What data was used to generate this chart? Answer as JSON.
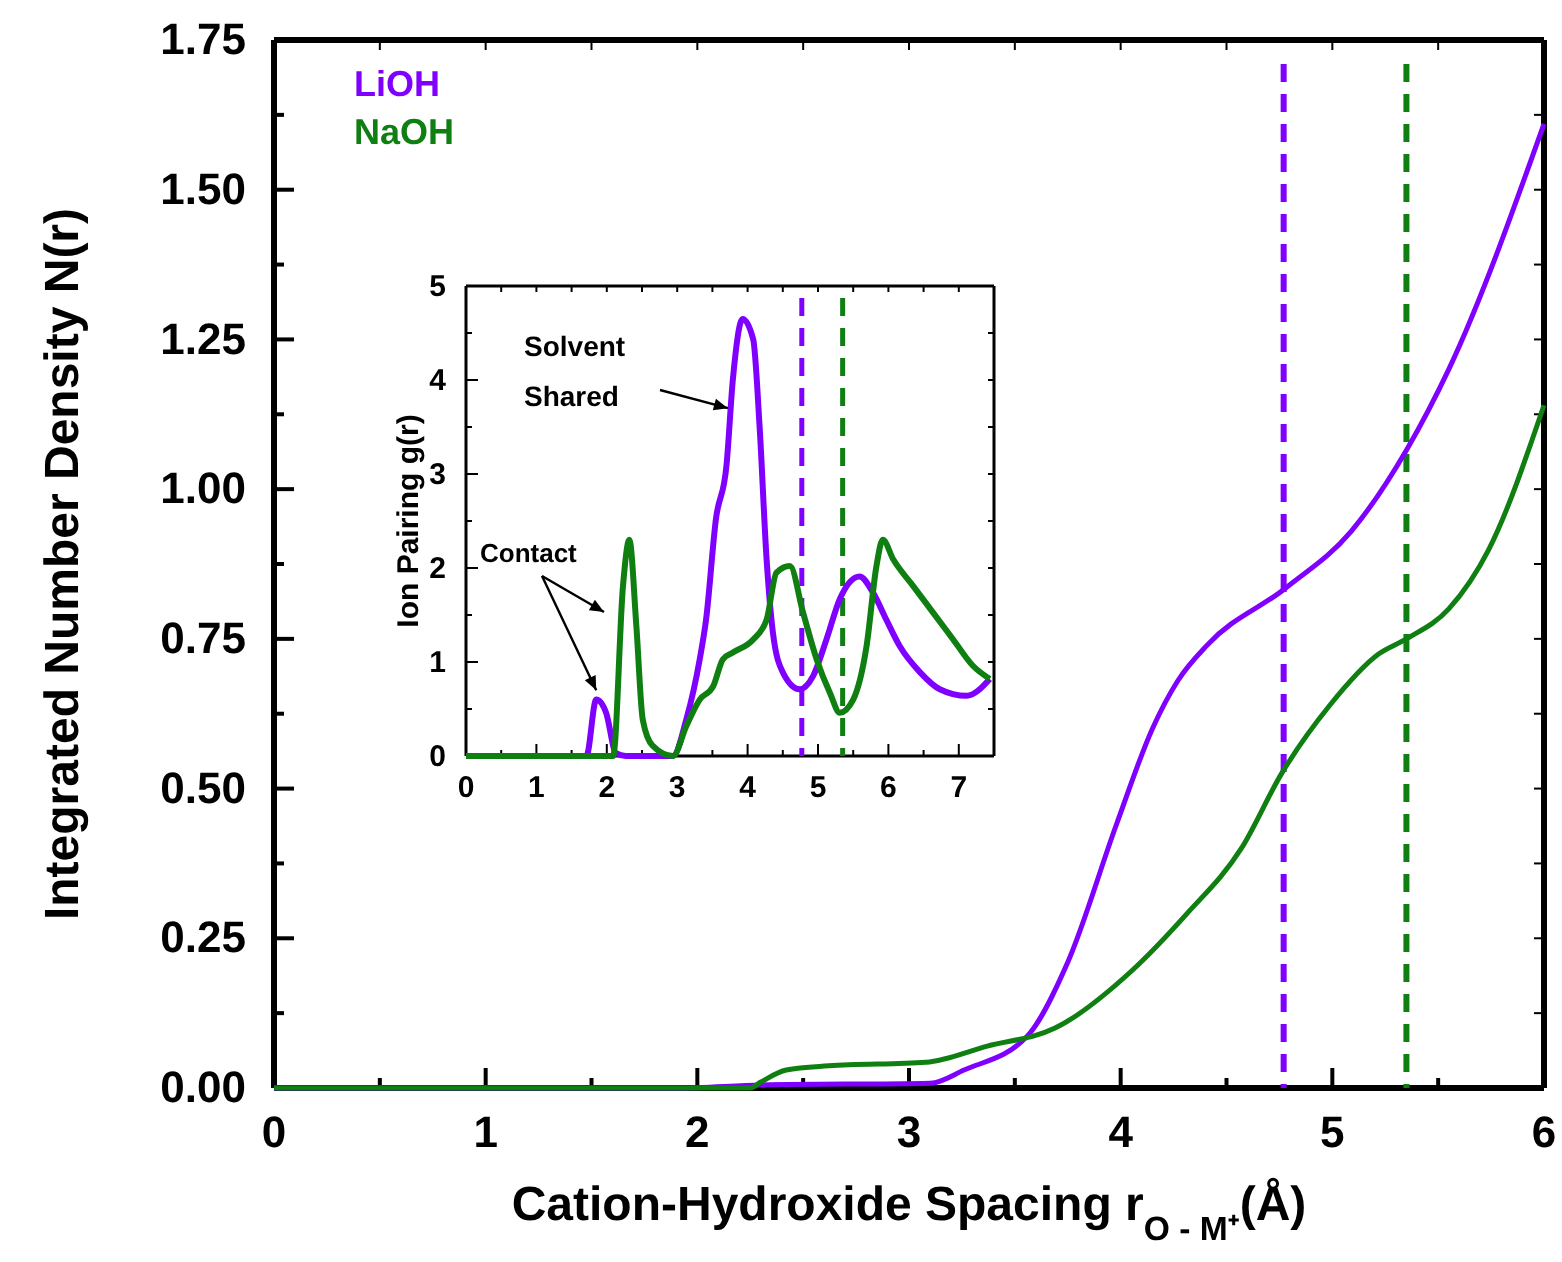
{
  "chart_data": [
    {
      "type": "line",
      "xlabel": "Cation-Hydroxide Spacing r$_{O - M⁺}$(Å)",
      "ylabel": "Integrated Number Density N(r)",
      "xlim": [
        0,
        6
      ],
      "ylim": [
        0,
        1.75
      ],
      "xticks": [
        0,
        {
          "value": 0.5,
          "label": null
        },
        1,
        {
          "value": 1.5,
          "label": null
        },
        2,
        {
          "value": 2.5,
          "label": null
        },
        3,
        {
          "value": 3.5,
          "label": null
        },
        4,
        {
          "value": 4.5,
          "label": null
        },
        5,
        {
          "value": 5.5,
          "label": null
        },
        6
      ],
      "yticks": [
        {
          "value": 0,
          "label": "0.00"
        },
        {
          "value": 0.125,
          "label": null
        },
        {
          "value": 0.25,
          "label": "0.25"
        },
        {
          "value": 0.375,
          "label": null
        },
        {
          "value": 0.5,
          "label": "0.50"
        },
        {
          "value": 0.625,
          "label": null
        },
        {
          "value": 0.75,
          "label": "0.75"
        },
        {
          "value": 0.875,
          "label": null
        },
        {
          "value": 1,
          "label": "1.00"
        },
        {
          "value": 1.125,
          "label": null
        },
        {
          "value": 1.25,
          "label": "1.25"
        },
        {
          "value": 1.375,
          "label": null
        },
        {
          "value": 1.5,
          "label": "1.50"
        },
        {
          "value": 1.625,
          "label": null
        },
        {
          "value": 1.75,
          "label": "1.75"
        }
      ],
      "legend": "top left",
      "grid": false,
      "line_style": "solid",
      "marker": "none",
      "series": [
        {
          "name": "LiOH",
          "color": "#8000ff",
          "x": [
            0,
            1.9,
            2.3,
            3.1,
            3.26,
            3.56,
            3.75,
            3.98,
            4.15,
            4.27,
            4.41,
            4.78,
            5.09,
            5.35,
            5.55,
            6
          ],
          "values": [
            0,
            0,
            0.005,
            0.008,
            0.03,
            0.087,
            0.21,
            0.44,
            0.6,
            0.68,
            0.74,
            0.835,
            0.93,
            1.065,
            1.2,
            1.61
          ]
        },
        {
          "name": "NaOH",
          "color": "#0f7f12",
          "x": [
            0,
            2.25,
            2.3,
            2.42,
            2.62,
            3.08,
            3.37,
            3.69,
            4.05,
            4.31,
            4.57,
            4.76,
            4.99,
            5.22,
            5.35,
            5.55,
            5.74,
            6
          ],
          "values": [
            0,
            0,
            0.01,
            0.03,
            0.037,
            0.043,
            0.07,
            0.1,
            0.195,
            0.29,
            0.4,
            0.525,
            0.64,
            0.725,
            0.75,
            0.8,
            0.9,
            1.14
          ]
        }
      ],
      "ref_lines": [
        {
          "axis": "x",
          "value": 4.77,
          "color": "#8000ff",
          "line_style": "dashed"
        },
        {
          "axis": "x",
          "value": 5.35,
          "color": "#0f7f12",
          "line_style": "dashed"
        }
      ]
    },
    {
      "type": "line",
      "ylabel": "Ion Pairing g(r)",
      "xlim": [
        0,
        7.5
      ],
      "ylim": [
        0,
        5
      ],
      "xticks": [
        0,
        {
          "value": 0.5,
          "label": null
        },
        1,
        {
          "value": 1.5,
          "label": null
        },
        2,
        {
          "value": 2.5,
          "label": null
        },
        3,
        {
          "value": 3.5,
          "label": null
        },
        4,
        {
          "value": 4.5,
          "label": null
        },
        5,
        {
          "value": 5.5,
          "label": null
        },
        6,
        {
          "value": 6.5,
          "label": null
        },
        7,
        {
          "value": 7.5,
          "label": null
        }
      ],
      "yticks": [
        0,
        {
          "value": 0.5,
          "label": null
        },
        1,
        {
          "value": 1.5,
          "label": null
        },
        2,
        {
          "value": 2.5,
          "label": null
        },
        3,
        {
          "value": 3.5,
          "label": null
        },
        4,
        {
          "value": 4.5,
          "label": null
        },
        5
      ],
      "grid": false,
      "line_style": "solid",
      "marker": "none",
      "annotations": [
        {
          "text": "Contact",
          "x": 1.85,
          "y": 0.7
        },
        {
          "text": "Solvent Shared",
          "x": 3.72,
          "y": 3.7
        }
      ],
      "series": [
        {
          "color": "#8000ff",
          "x": [
            0,
            1.71,
            1.85,
            1.99,
            2.13,
            2.27,
            2.94,
            3.13,
            3.32,
            3.41,
            3.55,
            3.7,
            3.79,
            3.93,
            4.08,
            4.17,
            4.27,
            4.36,
            4.5,
            4.74,
            4.93,
            5.12,
            5.31,
            5.59,
            5.78,
            5.97,
            6.16,
            6.45,
            6.73,
            7.11,
            7.44
          ],
          "values": [
            0,
            0,
            0.6,
            0.46,
            0.03,
            0,
            0,
            0.39,
            1.03,
            1.45,
            2.52,
            3.09,
            4.0,
            4.65,
            4.43,
            3.51,
            2.09,
            1.31,
            0.89,
            0.71,
            0.85,
            1.24,
            1.67,
            1.91,
            1.74,
            1.45,
            1.17,
            0.89,
            0.71,
            0.64,
            0.82
          ]
        },
        {
          "color": "#0f7f12",
          "x": [
            0,
            2.09,
            2.23,
            2.32,
            2.42,
            2.51,
            2.65,
            2.94,
            3.13,
            3.32,
            3.51,
            3.65,
            3.79,
            4.08,
            4.27,
            4.41,
            4.6,
            4.79,
            4.98,
            5.17,
            5.31,
            5.5,
            5.69,
            5.83,
            5.92,
            6.07,
            6.35,
            6.64,
            6.92,
            7.2,
            7.44
          ],
          "values": [
            0,
            0,
            1.81,
            2.3,
            1.38,
            0.39,
            0.11,
            0,
            0.32,
            0.6,
            0.74,
            1.03,
            1.1,
            1.24,
            1.45,
            1.95,
            2.02,
            1.52,
            1.03,
            0.67,
            0.46,
            0.6,
            1.17,
            2.02,
            2.3,
            2.09,
            1.81,
            1.52,
            1.24,
            0.96,
            0.82
          ]
        }
      ],
      "ref_lines": [
        {
          "axis": "x",
          "value": 4.77,
          "color": "#8000ff",
          "line_style": "dashed"
        },
        {
          "axis": "x",
          "value": 5.35,
          "color": "#0f7f12",
          "line_style": "dashed"
        }
      ]
    }
  ]
}
